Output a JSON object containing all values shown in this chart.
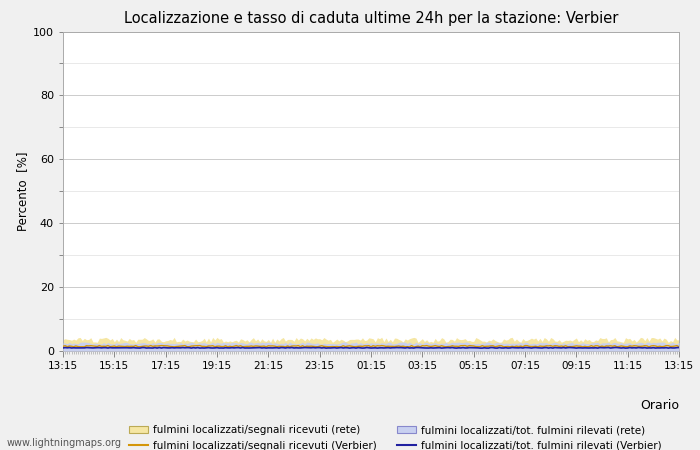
{
  "title": "Localizzazione e tasso di caduta ultime 24h per la stazione: Verbier",
  "ylabel": "Percento  [%]",
  "xlabel": "Orario",
  "ylim": [
    0,
    100
  ],
  "yticks": [
    0,
    20,
    40,
    60,
    80,
    100
  ],
  "ytick_minor": [
    10,
    30,
    50,
    70,
    90
  ],
  "xtick_labels": [
    "13:15",
    "15:15",
    "17:15",
    "19:15",
    "21:15",
    "23:15",
    "01:15",
    "03:15",
    "05:15",
    "07:15",
    "09:15",
    "11:15",
    "13:15"
  ],
  "n_points": 289,
  "fill_rete_color": "#f5e6a3",
  "fill_rete_alpha": 1.0,
  "fill_verbier_color": "#c8d0f0",
  "fill_verbier_alpha": 1.0,
  "line_segnali_verbier_color": "#d4960a",
  "line_tot_verbier_color": "#2020a0",
  "watermark": "www.lightningmaps.org",
  "background_color": "#f0f0f0",
  "plot_bg_color": "#ffffff",
  "grid_color": "#cccccc",
  "legend_labels": [
    "fulmini localizzati/segnali ricevuti (rete)",
    "fulmini localizzati/segnali ricevuti (Verbier)",
    "fulmini localizzati/tot. fulmini rilevati (rete)",
    "fulmini localizzati/tot. fulmini rilevati (Verbier)"
  ]
}
